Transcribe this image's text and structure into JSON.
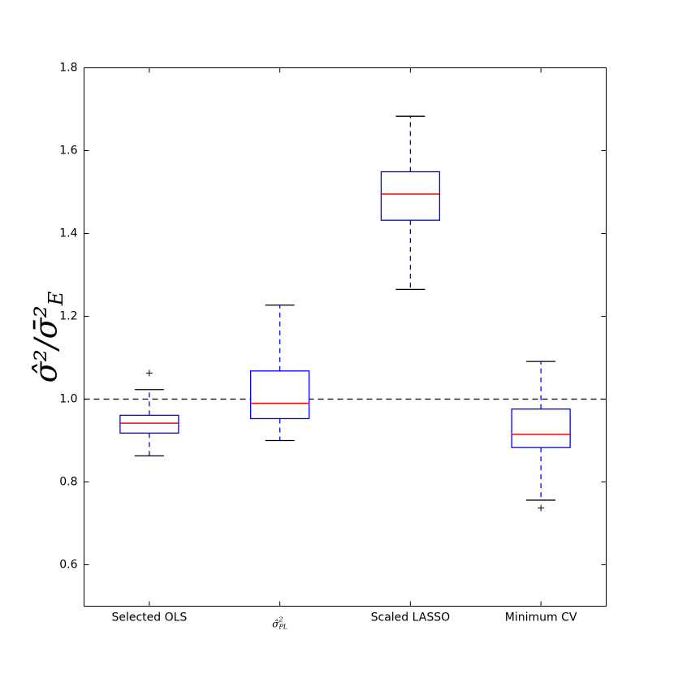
{
  "chart_data": {
    "type": "box",
    "title": "",
    "xlabel": "",
    "ylabel": "σ̂²/σ̄²_E",
    "ylim": [
      0.5,
      1.8
    ],
    "y_ticks": [
      0.6,
      0.8,
      1.0,
      1.2,
      1.4,
      1.6,
      1.8
    ],
    "y_tick_labels": [
      "0.6",
      "0.8",
      "1.0",
      "1.2",
      "1.4",
      "1.6",
      "1.8"
    ],
    "reference_line": {
      "y": 1.0,
      "style": "dashed"
    },
    "grid": false,
    "categories": [
      "Selected OLS",
      "σ̂²_PL",
      "Scaled LASSO",
      "Minimum CV"
    ],
    "boxes": [
      {
        "category": "Selected OLS",
        "whisker_low": 0.863,
        "q1": 0.918,
        "median": 0.942,
        "q3": 0.961,
        "whisker_high": 1.023,
        "outliers": [
          1.063
        ]
      },
      {
        "category": "σ̂²_PL",
        "whisker_low": 0.9,
        "q1": 0.953,
        "median": 0.99,
        "q3": 1.068,
        "whisker_high": 1.227,
        "outliers": []
      },
      {
        "category": "Scaled LASSO",
        "whisker_low": 1.265,
        "q1": 1.432,
        "median": 1.495,
        "q3": 1.549,
        "whisker_high": 1.683,
        "outliers": []
      },
      {
        "category": "Minimum CV",
        "whisker_low": 0.756,
        "q1": 0.883,
        "median": 0.915,
        "q3": 0.976,
        "whisker_high": 1.091,
        "outliers": [
          0.737
        ]
      }
    ],
    "colors": {
      "box": "#0000ff",
      "median": "#ff0000",
      "whisker_cap": "#000000",
      "outlier": "#000000",
      "reference": "#000000"
    }
  }
}
